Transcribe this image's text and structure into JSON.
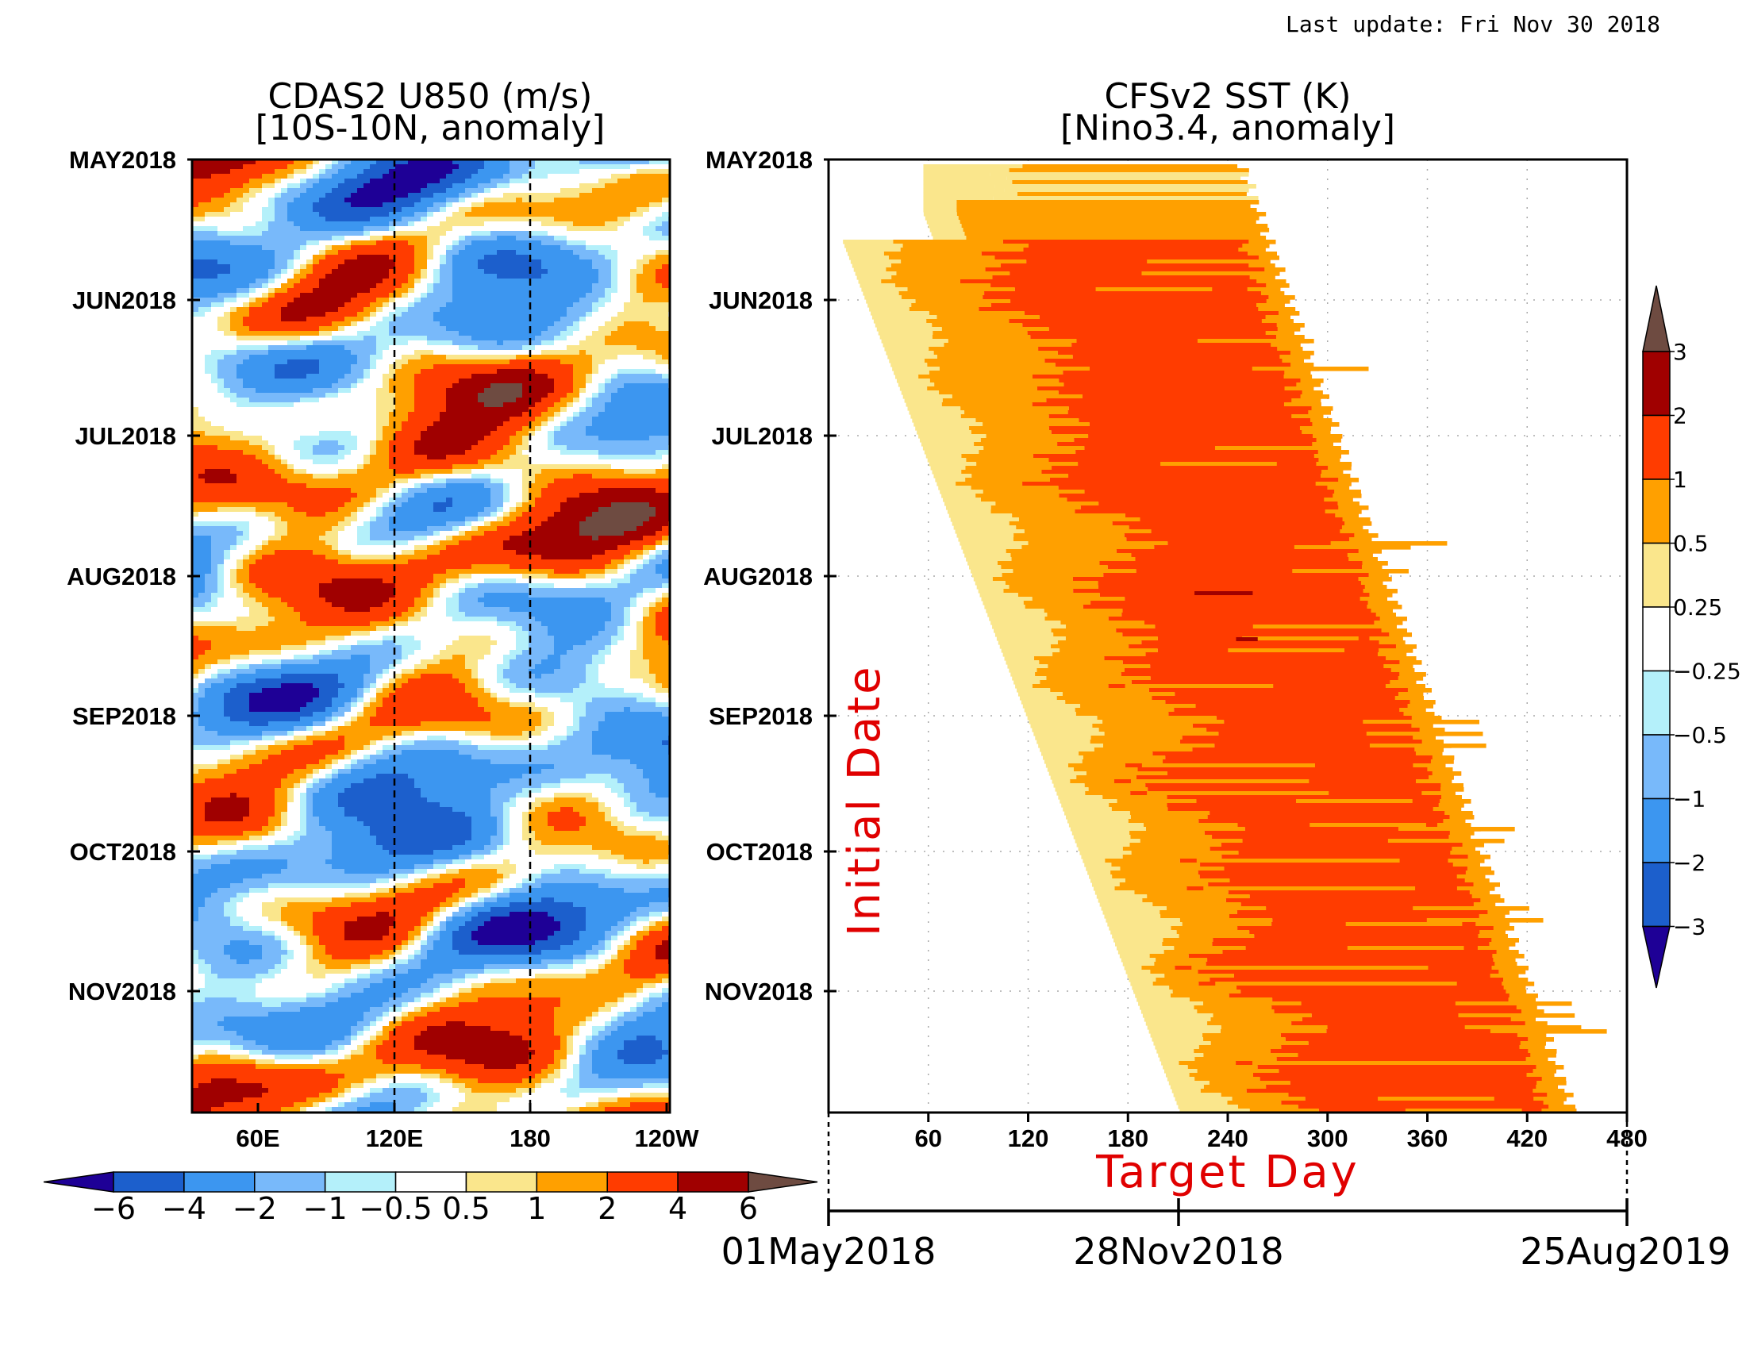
{
  "header": {
    "last_update": "Last update: Fri Nov 30 2018"
  },
  "colors": {
    "scale": [
      "#1e0096",
      "#1c5fcc",
      "#3c96f0",
      "#78b9fa",
      "#b4f0fa",
      "#ffffff",
      "#fae68c",
      "#ffa000",
      "#ff3c00",
      "#a00000",
      "#6e4b41"
    ]
  },
  "chart_data": [
    {
      "type": "heatmap",
      "title": "CDAS2 U850 (m/s)",
      "subtitle": "[10S-10N, anomaly]",
      "xlabel": "",
      "ylabel": "",
      "x_ticks": [
        "60E",
        "120E",
        "180",
        "120W"
      ],
      "y_ticks": [
        "MAY2018",
        "JUN2018",
        "JUL2018",
        "AUG2018",
        "SEP2018",
        "OCT2018",
        "NOV2018"
      ],
      "reference_lines": [
        "120E",
        "180"
      ],
      "colorbar": {
        "orientation": "horizontal",
        "labels": [
          "−6",
          "−4",
          "−2",
          "−1",
          "−0.5",
          "0.5",
          "1",
          "2",
          "4",
          "6"
        ],
        "levels": [
          -6,
          -4,
          -2,
          -1,
          -0.5,
          0.5,
          1,
          2,
          4,
          6
        ]
      }
    },
    {
      "type": "heatmap",
      "title": "CFSv2 SST (K)",
      "subtitle": "[Nino3.4, anomaly]",
      "xlabel": "Target Day",
      "ylabel": "Initial Date",
      "x_ticks": [
        "60",
        "120",
        "180",
        "240",
        "300",
        "360",
        "420",
        "480"
      ],
      "xlim": [
        0,
        480
      ],
      "y_ticks": [
        "MAY2018",
        "JUN2018",
        "JUL2018",
        "AUG2018",
        "SEP2018",
        "OCT2018",
        "NOV2018"
      ],
      "date_axis": [
        "01May2018",
        "28Nov2018",
        "25Aug2019"
      ],
      "colorbar": {
        "orientation": "vertical",
        "labels": [
          "3",
          "2",
          "1",
          "0.5",
          "0.25",
          "−0.25",
          "−0.5",
          "−1",
          "−2",
          "−3"
        ],
        "levels": [
          3,
          2,
          1,
          0.5,
          0.25,
          -0.25,
          -0.5,
          -1,
          -2,
          -3
        ]
      }
    }
  ]
}
